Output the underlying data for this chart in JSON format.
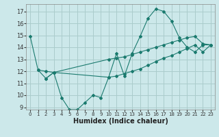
{
  "xlabel": "Humidex (Indice chaleur)",
  "bg_color": "#cce8ea",
  "grid_color": "#aacccc",
  "line_color": "#1a7a6e",
  "xlim": [
    -0.5,
    23.5
  ],
  "ylim": [
    8.8,
    17.6
  ],
  "xticks": [
    0,
    1,
    2,
    3,
    4,
    5,
    6,
    7,
    8,
    9,
    10,
    11,
    12,
    13,
    14,
    15,
    16,
    17,
    18,
    19,
    20,
    21,
    22,
    23
  ],
  "yticks": [
    9,
    10,
    11,
    12,
    13,
    14,
    15,
    16,
    17
  ],
  "line1_x": [
    0,
    1,
    2,
    3,
    4,
    5,
    6,
    7,
    8,
    9,
    10,
    11,
    12,
    13,
    14,
    15,
    16,
    17,
    18,
    19,
    20,
    21,
    22,
    23
  ],
  "line1_y": [
    14.9,
    12.1,
    11.4,
    11.9,
    9.8,
    8.8,
    8.8,
    9.4,
    10.0,
    9.8,
    11.5,
    13.5,
    11.6,
    13.5,
    14.9,
    16.4,
    17.2,
    17.0,
    16.2,
    14.8,
    14.0,
    13.6,
    14.2,
    14.2
  ],
  "line2_x": [
    1,
    2,
    3,
    10,
    11,
    12,
    13,
    14,
    15,
    16,
    17,
    18,
    19,
    20,
    21,
    22,
    23
  ],
  "line2_y": [
    12.1,
    12.0,
    11.9,
    13.0,
    13.1,
    13.2,
    13.4,
    13.6,
    13.8,
    14.0,
    14.2,
    14.4,
    14.6,
    14.8,
    14.9,
    14.3,
    14.2
  ],
  "line3_x": [
    2,
    3,
    10,
    11,
    12,
    13,
    14,
    15,
    16,
    17,
    18,
    19,
    20,
    21,
    22,
    23
  ],
  "line3_y": [
    11.4,
    11.9,
    11.5,
    11.6,
    11.8,
    12.0,
    12.2,
    12.5,
    12.8,
    13.1,
    13.3,
    13.6,
    13.9,
    14.2,
    13.6,
    14.2
  ]
}
